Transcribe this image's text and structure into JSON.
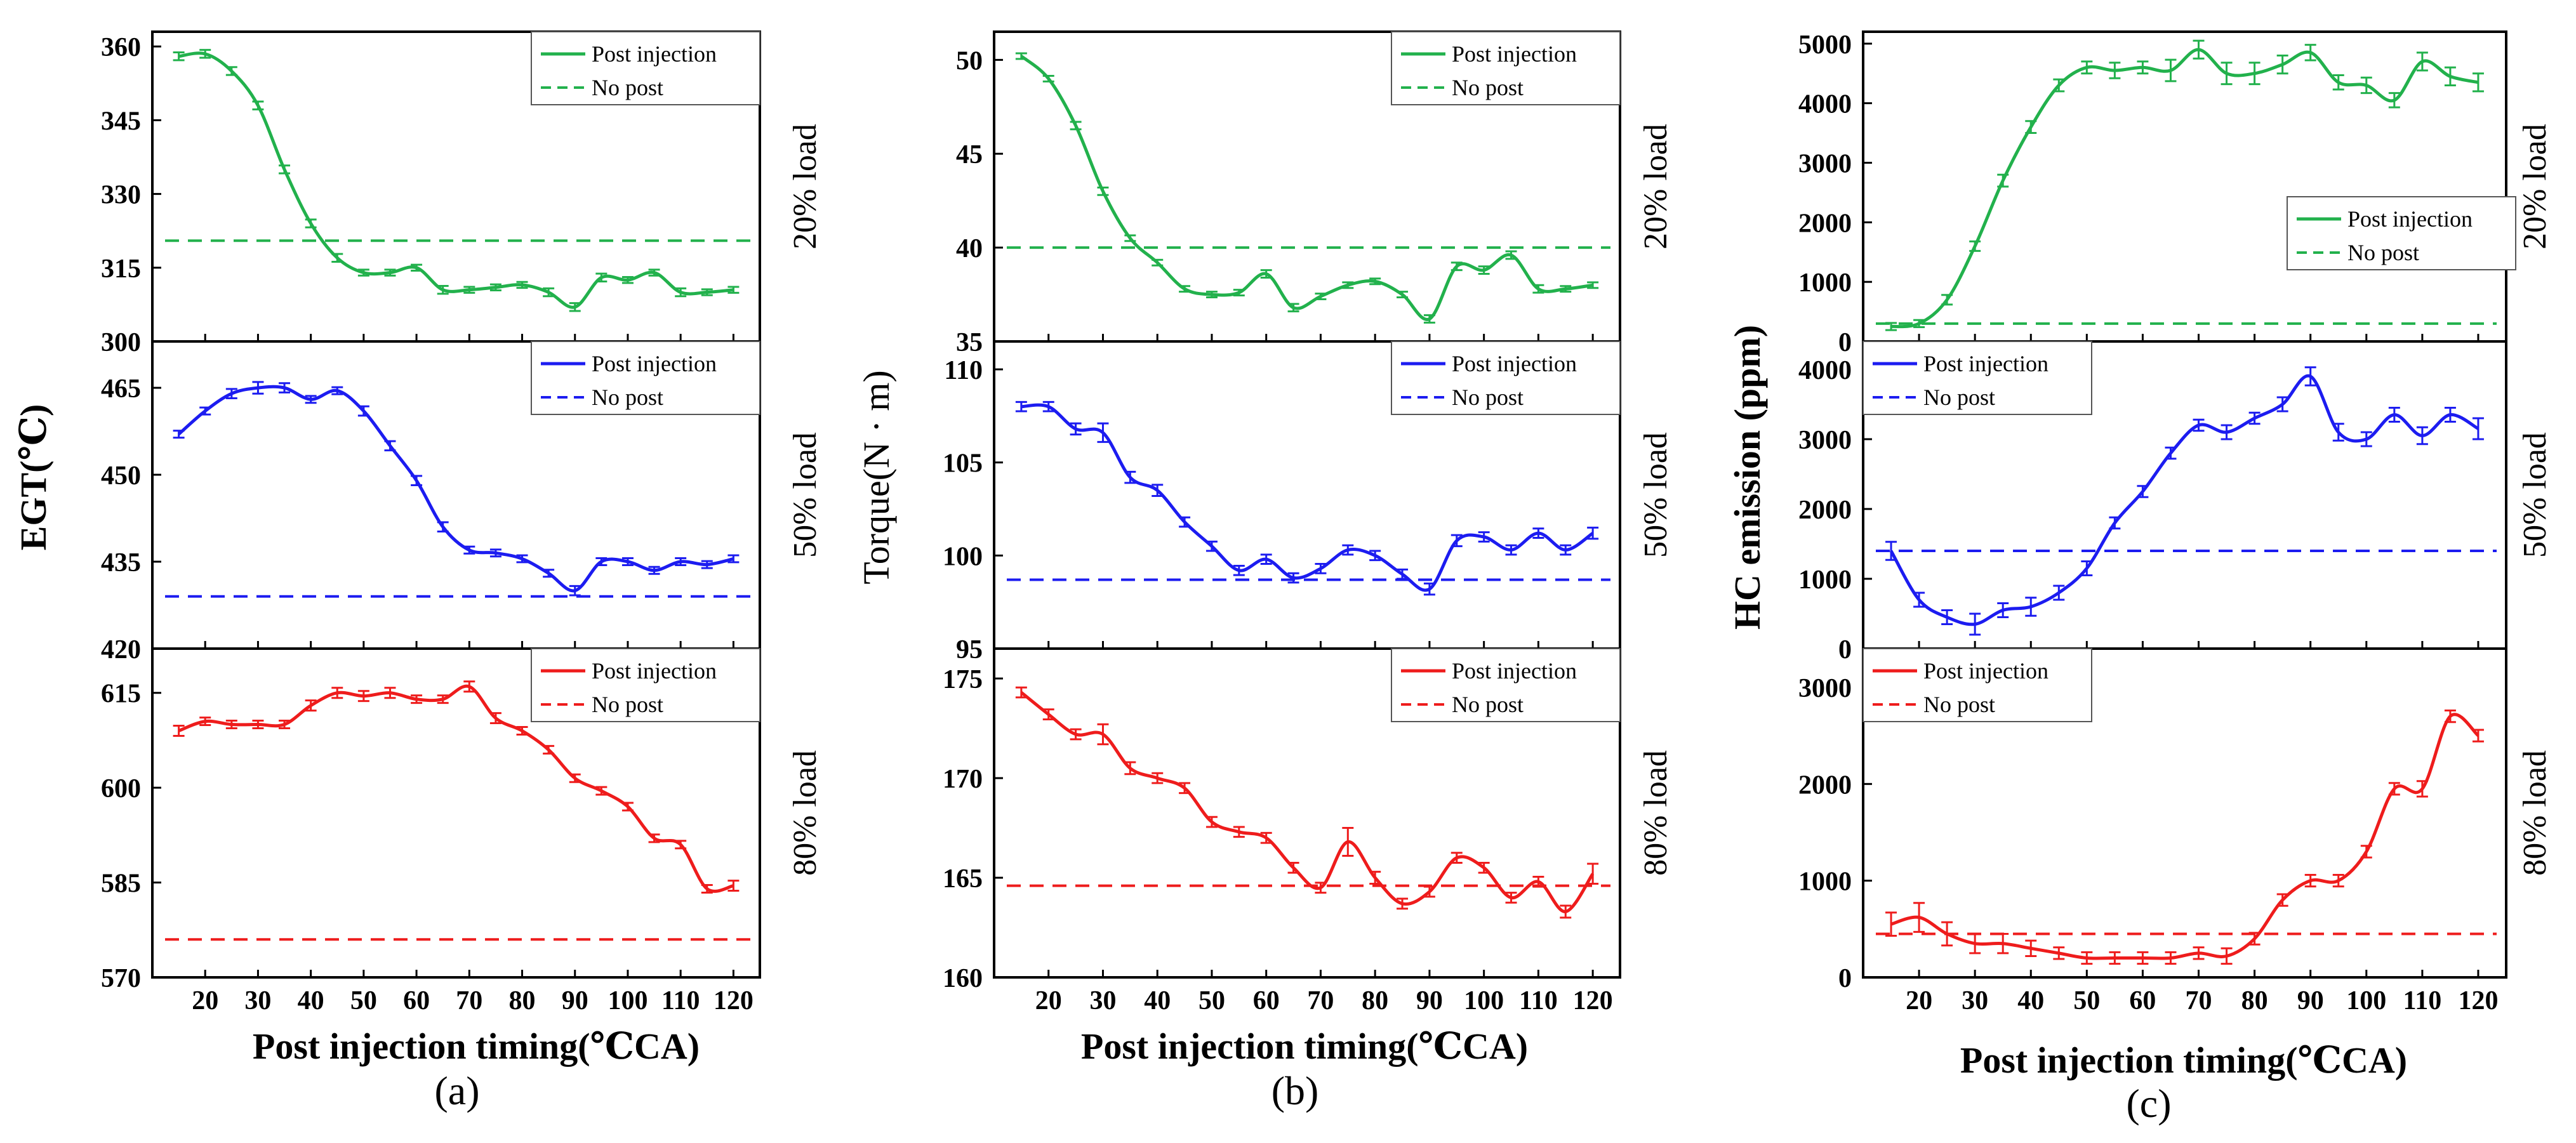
{
  "legend": {
    "post": "Post injection",
    "nopost": "No post"
  },
  "colors": {
    "green": "#22b14c",
    "blue": "#1c1cf0",
    "red": "#ee1c1c",
    "axis": "#000000"
  },
  "panels": [
    {
      "caption": "(a)",
      "xlabel": "Post injection timing(℃CA)",
      "ylabel": "EGT(℃)",
      "xticks": [
        20,
        30,
        40,
        50,
        60,
        70,
        80,
        90,
        100,
        110,
        120
      ],
      "xlim": [
        10,
        125
      ],
      "subplots": [
        {
          "load_label": "20% load",
          "yticks": [
            "300",
            "315",
            "330",
            "345",
            "360"
          ],
          "ylim": [
            300,
            363
          ],
          "legend_pos": "top-right"
        },
        {
          "load_label": "50% load",
          "yticks": [
            "420",
            "435",
            "450",
            "465"
          ],
          "ylim": [
            420,
            473
          ],
          "legend_pos": "top-right"
        },
        {
          "load_label": "80% load",
          "yticks": [
            "570",
            "585",
            "600",
            "615"
          ],
          "ylim": [
            570,
            622
          ],
          "legend_pos": "top-right"
        }
      ]
    },
    {
      "caption": "(b)",
      "xlabel": "Post injection timing(℃CA)",
      "ylabel": "Torque(N · m)",
      "xticks": [
        20,
        30,
        40,
        50,
        60,
        70,
        80,
        90,
        100,
        110,
        120
      ],
      "xlim": [
        10,
        125
      ],
      "subplots": [
        {
          "load_label": "20% load",
          "yticks": [
            "35",
            "40",
            "45",
            "50"
          ],
          "ylim": [
            35,
            51.5
          ],
          "legend_pos": "top-right"
        },
        {
          "load_label": "50% load",
          "yticks": [
            "95",
            "100",
            "105",
            "110"
          ],
          "ylim": [
            95,
            111.5
          ],
          "legend_pos": "top-right"
        },
        {
          "load_label": "80% load",
          "yticks": [
            "160",
            "165",
            "170",
            "175"
          ],
          "ylim": [
            160,
            176.5
          ],
          "legend_pos": "top-right"
        }
      ]
    },
    {
      "caption": "(c)",
      "xlabel": "Post injection timing(℃CA)",
      "ylabel": "HC emission (ppm)",
      "xticks": [
        20,
        30,
        40,
        50,
        60,
        70,
        80,
        90,
        100,
        110,
        120
      ],
      "xlim": [
        10,
        125
      ],
      "subplots": [
        {
          "load_label": "20% load",
          "yticks": [
            "0",
            "1000",
            "2000",
            "3000",
            "4000",
            "5000"
          ],
          "ylim": [
            0,
            5200
          ],
          "legend_pos": "center-right"
        },
        {
          "load_label": "50% load",
          "yticks": [
            "0",
            "1000",
            "2000",
            "3000",
            "4000"
          ],
          "ylim": [
            0,
            4400
          ],
          "legend_pos": "top-left"
        },
        {
          "load_label": "80% load",
          "yticks": [
            "0",
            "1000",
            "2000",
            "3000"
          ],
          "ylim": [
            0,
            3400
          ],
          "legend_pos": "top-left"
        }
      ]
    }
  ],
  "chart_data": [
    {
      "type": "line",
      "id": "a-20",
      "title": "EGT 20% load",
      "xlabel": "Post injection timing(℃CA)",
      "ylabel": "EGT(℃)",
      "ylim": [
        300,
        363
      ],
      "xlim": [
        10,
        125
      ],
      "x": [
        15,
        20,
        25,
        30,
        35,
        40,
        45,
        50,
        55,
        60,
        65,
        70,
        75,
        80,
        85,
        90,
        95,
        100,
        105,
        110,
        115,
        120
      ],
      "series": [
        {
          "name": "Post injection",
          "color": "#22b14c",
          "style": "solid",
          "values": [
            358,
            358.5,
            355,
            348,
            335,
            324,
            317,
            314,
            314,
            315,
            310.5,
            310.5,
            311,
            311.5,
            310,
            307,
            313,
            312.5,
            314,
            310,
            310,
            310.5
          ],
          "errors": [
            0.8,
            0.8,
            0.8,
            0.8,
            0.8,
            0.8,
            0.8,
            0.6,
            0.6,
            0.6,
            0.8,
            0.6,
            0.6,
            0.6,
            0.8,
            0.8,
            0.8,
            0.6,
            0.6,
            0.8,
            0.6,
            0.6
          ]
        },
        {
          "name": "No post",
          "color": "#22b14c",
          "style": "dashed",
          "value": 320.5
        }
      ]
    },
    {
      "type": "line",
      "id": "a-50",
      "title": "EGT 50% load",
      "ylim": [
        420,
        473
      ],
      "xlim": [
        10,
        125
      ],
      "x": [
        15,
        20,
        25,
        30,
        35,
        40,
        45,
        50,
        55,
        60,
        65,
        70,
        75,
        80,
        85,
        90,
        95,
        100,
        105,
        110,
        115,
        120
      ],
      "series": [
        {
          "name": "Post injection",
          "color": "#1c1cf0",
          "style": "solid",
          "values": [
            457,
            461,
            464,
            465,
            465,
            463,
            464.5,
            461,
            455,
            449,
            441,
            437,
            436.5,
            435.5,
            433,
            430,
            435,
            435,
            433.5,
            435,
            434.5,
            435.5
          ],
          "errors": [
            0.6,
            0.6,
            0.8,
            1.0,
            0.8,
            0.6,
            0.6,
            0.8,
            0.8,
            0.8,
            0.8,
            0.6,
            0.6,
            0.6,
            0.6,
            0.8,
            0.6,
            0.6,
            0.6,
            0.6,
            0.6,
            0.6
          ]
        },
        {
          "name": "No post",
          "color": "#1c1cf0",
          "style": "dashed",
          "value": 429
        }
      ]
    },
    {
      "type": "line",
      "id": "a-80",
      "title": "EGT 80% load",
      "ylim": [
        570,
        622
      ],
      "xlim": [
        10,
        125
      ],
      "x": [
        15,
        20,
        25,
        30,
        35,
        40,
        45,
        50,
        55,
        60,
        65,
        70,
        75,
        80,
        85,
        90,
        95,
        100,
        105,
        110,
        115,
        120
      ],
      "series": [
        {
          "name": "Post injection",
          "color": "#ee1c1c",
          "style": "solid",
          "values": [
            609,
            610.5,
            610,
            610,
            610,
            613,
            615,
            614.5,
            615,
            614,
            614,
            616,
            611,
            609,
            606,
            601.5,
            599.5,
            597,
            592,
            591,
            584,
            584.5
          ],
          "errors": [
            0.8,
            0.6,
            0.6,
            0.6,
            0.6,
            0.8,
            0.8,
            0.8,
            0.8,
            0.6,
            0.6,
            0.8,
            0.8,
            0.6,
            0.6,
            0.6,
            0.6,
            0.6,
            0.6,
            0.6,
            0.6,
            0.8
          ]
        },
        {
          "name": "No post",
          "color": "#ee1c1c",
          "style": "dashed",
          "value": 576
        }
      ]
    },
    {
      "type": "line",
      "id": "b-20",
      "title": "Torque 20% load",
      "xlabel": "Post injection timing(℃CA)",
      "ylabel": "Torque(N · m)",
      "ylim": [
        35,
        51.5
      ],
      "xlim": [
        10,
        125
      ],
      "x": [
        15,
        20,
        25,
        30,
        35,
        40,
        45,
        50,
        55,
        60,
        65,
        70,
        75,
        80,
        85,
        90,
        95,
        100,
        105,
        110,
        115,
        120
      ],
      "series": [
        {
          "name": "Post injection",
          "color": "#22b14c",
          "style": "solid",
          "values": [
            50.2,
            49,
            46.5,
            43,
            40.5,
            39.2,
            37.8,
            37.5,
            37.6,
            38.6,
            36.8,
            37.4,
            38,
            38.2,
            37.5,
            36.2,
            39,
            38.8,
            39.6,
            37.8,
            37.8,
            38
          ],
          "errors": [
            0.15,
            0.15,
            0.2,
            0.2,
            0.15,
            0.15,
            0.15,
            0.15,
            0.15,
            0.2,
            0.2,
            0.15,
            0.15,
            0.15,
            0.15,
            0.2,
            0.2,
            0.2,
            0.2,
            0.2,
            0.15,
            0.15
          ]
        },
        {
          "name": "No post",
          "color": "#22b14c",
          "style": "dashed",
          "value": 40
        }
      ]
    },
    {
      "type": "line",
      "id": "b-50",
      "title": "Torque 50% load",
      "ylim": [
        95,
        111.5
      ],
      "xlim": [
        10,
        125
      ],
      "x": [
        15,
        20,
        25,
        30,
        35,
        40,
        45,
        50,
        55,
        60,
        65,
        70,
        75,
        80,
        85,
        90,
        95,
        100,
        105,
        110,
        115,
        120
      ],
      "series": [
        {
          "name": "Post injection",
          "color": "#1c1cf0",
          "style": "solid",
          "values": [
            108,
            108,
            106.8,
            106.6,
            104.2,
            103.5,
            101.8,
            100.5,
            99.2,
            99.8,
            98.8,
            99.3,
            100.3,
            100,
            99,
            98.2,
            100.8,
            101,
            100.3,
            101.2,
            100.3,
            101.2
          ],
          "errors": [
            0.25,
            0.25,
            0.3,
            0.5,
            0.3,
            0.3,
            0.25,
            0.25,
            0.25,
            0.25,
            0.25,
            0.25,
            0.25,
            0.25,
            0.25,
            0.3,
            0.3,
            0.25,
            0.25,
            0.25,
            0.25,
            0.3
          ]
        },
        {
          "name": "No post",
          "color": "#1c1cf0",
          "style": "dashed",
          "value": 98.7
        }
      ]
    },
    {
      "type": "line",
      "id": "b-80",
      "title": "Torque 80% load",
      "ylim": [
        160,
        176.5
      ],
      "xlim": [
        10,
        125
      ],
      "x": [
        15,
        20,
        25,
        30,
        35,
        40,
        45,
        50,
        55,
        60,
        65,
        70,
        75,
        80,
        85,
        90,
        95,
        100,
        105,
        110,
        115,
        120
      ],
      "series": [
        {
          "name": "Post injection",
          "color": "#ee1c1c",
          "style": "solid",
          "values": [
            174.3,
            173.2,
            172.2,
            172.2,
            170.5,
            170,
            169.5,
            167.8,
            167.3,
            167,
            165.5,
            164.5,
            166.8,
            165,
            163.7,
            164.3,
            166,
            165.5,
            164,
            164.8,
            163.3,
            165.2
          ],
          "errors": [
            0.25,
            0.25,
            0.25,
            0.5,
            0.3,
            0.25,
            0.25,
            0.25,
            0.25,
            0.25,
            0.25,
            0.25,
            0.7,
            0.3,
            0.25,
            0.25,
            0.25,
            0.25,
            0.25,
            0.25,
            0.3,
            0.5
          ]
        },
        {
          "name": "No post",
          "color": "#ee1c1c",
          "style": "dashed",
          "value": 164.6
        }
      ]
    },
    {
      "type": "line",
      "id": "c-20",
      "title": "HC emission 20% load",
      "xlabel": "Post injection timing(℃CA)",
      "ylabel": "HC emission (ppm)",
      "ylim": [
        0,
        5200
      ],
      "xlim": [
        10,
        125
      ],
      "x": [
        15,
        20,
        25,
        30,
        35,
        40,
        45,
        50,
        55,
        60,
        65,
        70,
        75,
        80,
        85,
        90,
        95,
        100,
        105,
        110,
        115,
        120
      ],
      "series": [
        {
          "name": "Post injection",
          "color": "#22b14c",
          "style": "solid",
          "values": [
            250,
            300,
            700,
            1600,
            2700,
            3600,
            4300,
            4600,
            4550,
            4600,
            4550,
            4900,
            4500,
            4500,
            4650,
            4850,
            4350,
            4300,
            4050,
            4700,
            4450,
            4350
          ],
          "errors": [
            60,
            60,
            80,
            80,
            100,
            100,
            100,
            100,
            130,
            100,
            180,
            150,
            180,
            180,
            150,
            130,
            120,
            130,
            120,
            150,
            150,
            150
          ]
        },
        {
          "name": "No post",
          "color": "#22b14c",
          "style": "dashed",
          "value": 300
        }
      ]
    },
    {
      "type": "line",
      "id": "c-50",
      "title": "HC emission 50% load",
      "ylim": [
        0,
        4400
      ],
      "xlim": [
        10,
        125
      ],
      "x": [
        15,
        20,
        25,
        30,
        35,
        40,
        45,
        50,
        55,
        60,
        65,
        70,
        75,
        80,
        85,
        90,
        95,
        100,
        105,
        110,
        115,
        120
      ],
      "series": [
        {
          "name": "Post injection",
          "color": "#1c1cf0",
          "style": "solid",
          "values": [
            1400,
            700,
            450,
            350,
            550,
            600,
            800,
            1150,
            1800,
            2250,
            2800,
            3200,
            3100,
            3300,
            3500,
            3900,
            3100,
            3000,
            3350,
            3050,
            3350,
            3150
          ],
          "errors": [
            130,
            100,
            100,
            150,
            100,
            130,
            100,
            100,
            80,
            80,
            80,
            80,
            100,
            80,
            100,
            130,
            120,
            100,
            100,
            120,
            100,
            150
          ]
        },
        {
          "name": "No post",
          "color": "#1c1cf0",
          "style": "dashed",
          "value": 1400
        }
      ]
    },
    {
      "type": "line",
      "id": "c-80",
      "title": "HC emission 80% load",
      "ylim": [
        0,
        3400
      ],
      "xlim": [
        10,
        125
      ],
      "x": [
        15,
        20,
        25,
        30,
        35,
        40,
        45,
        50,
        55,
        60,
        65,
        70,
        75,
        80,
        85,
        90,
        95,
        100,
        105,
        110,
        115,
        120
      ],
      "series": [
        {
          "name": "Post injection",
          "color": "#ee1c1c",
          "style": "solid",
          "values": [
            550,
            620,
            450,
            350,
            350,
            300,
            250,
            200,
            200,
            200,
            200,
            250,
            220,
            400,
            800,
            1000,
            1000,
            1300,
            1950,
            1950,
            2700,
            2500
          ],
          "errors": [
            120,
            150,
            120,
            100,
            100,
            80,
            60,
            60,
            60,
            60,
            60,
            60,
            80,
            60,
            60,
            60,
            60,
            60,
            60,
            80,
            60,
            60
          ]
        },
        {
          "name": "No post",
          "color": "#ee1c1c",
          "style": "dashed",
          "value": 450
        }
      ]
    }
  ]
}
